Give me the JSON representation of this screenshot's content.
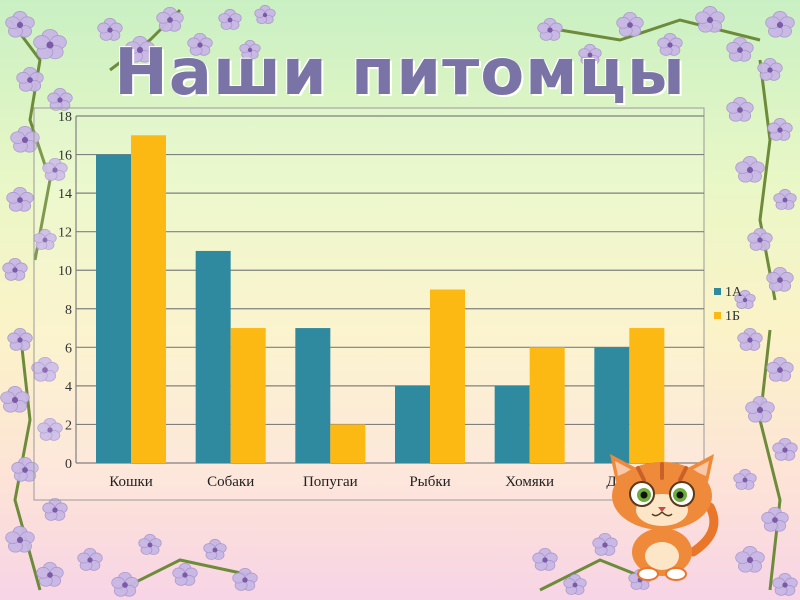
{
  "title": "Наши питомцы",
  "colors": {
    "series_1": "#2f8aa0",
    "series_2": "#fdb913",
    "grid": "#808080",
    "flower": "#c9b8e6",
    "flower_center": "#7b5aa6",
    "branch": "#6d8b3a"
  },
  "chart_data": {
    "type": "bar",
    "categories": [
      "Кошки",
      "Собаки",
      "Попугаи",
      "Рыбки",
      "Хомяки",
      "Другие"
    ],
    "series": [
      {
        "name": "1А",
        "values": [
          16,
          11,
          7,
          4,
          4,
          6
        ]
      },
      {
        "name": "1Б",
        "values": [
          17,
          7,
          2,
          9,
          6,
          7
        ]
      }
    ],
    "ylim": [
      0,
      18
    ],
    "yticks": [
      0,
      2,
      4,
      6,
      8,
      10,
      12,
      14,
      16,
      18
    ],
    "grid": true,
    "legend": "right"
  },
  "mascot": "cat-mascot-icon",
  "decoration": "flower-branch-icon"
}
